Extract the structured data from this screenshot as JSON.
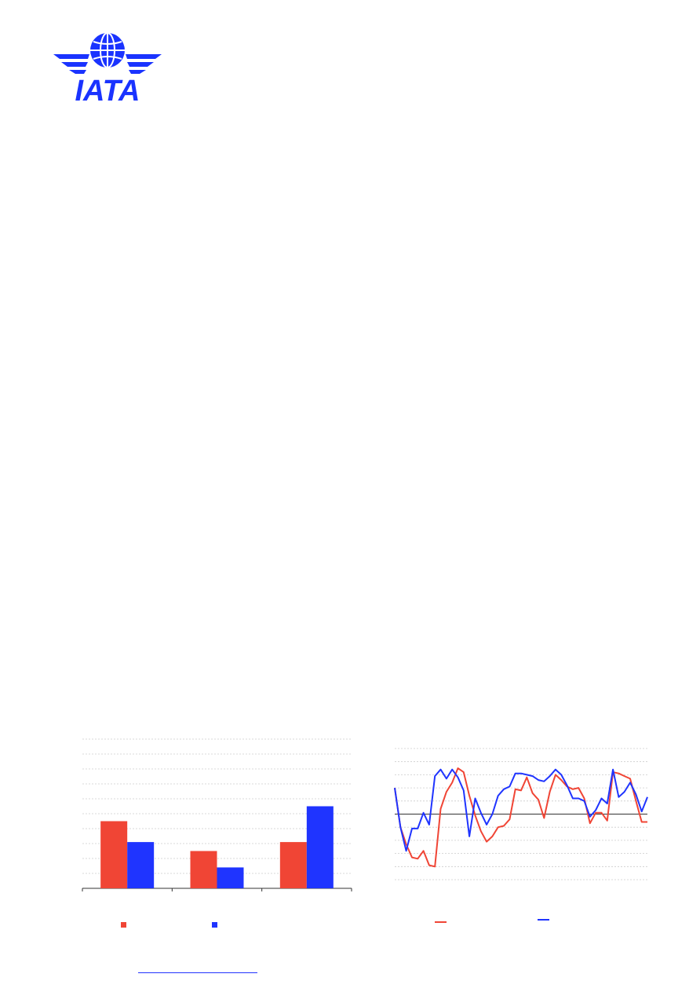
{
  "brand": {
    "logo_text": "IATA",
    "primary_color": "#1a33ff",
    "accent_color": "#f04535"
  },
  "charts": {
    "bar": {
      "legend": [
        {
          "name": "",
          "color": "#f04535"
        },
        {
          "name": "",
          "color": "#1f34ff"
        }
      ]
    },
    "line": {
      "legend": [
        {
          "name": "",
          "color": "#f04535"
        },
        {
          "name": "",
          "color": "#1f34ff"
        }
      ]
    }
  },
  "footer": {
    "source_link_text": ""
  },
  "chart_data": [
    {
      "type": "bar",
      "title": "",
      "xlabel": "",
      "ylabel": "",
      "categories": [
        "",
        "",
        ""
      ],
      "series": [
        {
          "values": [
            4.5,
            2.5,
            3.1
          ],
          "color": "#f04535"
        },
        {
          "values": [
            3.1,
            1.4,
            5.5
          ],
          "color": "#1f34ff"
        }
      ],
      "ylim": [
        0,
        10
      ],
      "grid": true
    },
    {
      "type": "line",
      "title": "",
      "xlabel": "",
      "ylabel": "",
      "ylim": [
        -5,
        5
      ],
      "grid": true,
      "zero_line": true,
      "series": [
        {
          "color": "#f04535",
          "values": [
            2.0,
            -1.0,
            -2.3,
            -3.3,
            -3.4,
            -2.8,
            -3.9,
            -4.0,
            0.4,
            1.7,
            2.4,
            3.5,
            3.2,
            1.4,
            -0.1,
            -1.3,
            -2.1,
            -1.7,
            -1.0,
            -0.9,
            -0.4,
            1.9,
            1.8,
            2.8,
            1.6,
            1.1,
            -0.3,
            1.7,
            3.0,
            2.6,
            2.1,
            1.9,
            2.0,
            1.2,
            -0.7,
            0.1,
            0.1,
            -0.5,
            3.2,
            3.1,
            2.9,
            2.7,
            1.0,
            -0.6,
            -0.6
          ]
        },
        {
          "color": "#1f34ff",
          "values": [
            2.0,
            -1.0,
            -2.8,
            -1.1,
            -1.1,
            0.1,
            -0.8,
            2.9,
            3.4,
            2.7,
            3.4,
            2.8,
            1.8,
            -1.7,
            1.2,
            0.1,
            -0.8,
            0.0,
            1.4,
            1.9,
            2.1,
            3.1,
            3.1,
            3.0,
            2.9,
            2.6,
            2.5,
            2.9,
            3.4,
            3.0,
            2.2,
            1.2,
            1.2,
            1.0,
            -0.2,
            0.3,
            1.2,
            0.8,
            3.4,
            1.3,
            1.7,
            2.4,
            1.5,
            0.2,
            1.3
          ]
        }
      ]
    }
  ]
}
